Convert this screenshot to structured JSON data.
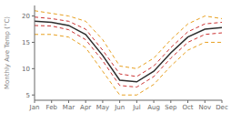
{
  "chart_data": {
    "type": "line",
    "ylabel": "Monthly Ave Temp (°C)",
    "categories": [
      "Jan",
      "Feb",
      "Mar",
      "Apr",
      "May",
      "Jun",
      "Jul",
      "Aug",
      "Sep",
      "Oct",
      "Nov",
      "Dec"
    ],
    "series": [
      {
        "color": "#e8a020",
        "line_style": "dashed",
        "values": [
          21.0,
          20.5,
          20.0,
          19.0,
          15.5,
          10.5,
          10.0,
          12.0,
          15.5,
          18.5,
          20.0,
          19.5
        ]
      },
      {
        "color": "#e8a020",
        "line_style": "dashed",
        "values": [
          16.5,
          16.5,
          16.0,
          14.0,
          9.5,
          5.0,
          5.0,
          7.0,
          10.5,
          13.5,
          15.0,
          15.0
        ]
      },
      {
        "color": "#cc3333",
        "line_style": "dashed",
        "values": [
          19.8,
          19.5,
          19.0,
          17.5,
          13.5,
          9.0,
          8.5,
          10.5,
          14.0,
          17.0,
          18.5,
          18.8
        ]
      },
      {
        "color": "#cc3333",
        "line_style": "dashed",
        "values": [
          18.2,
          18.1,
          17.4,
          15.5,
          11.5,
          6.8,
          6.5,
          8.5,
          12.0,
          15.0,
          16.5,
          16.8
        ]
      },
      {
        "color": "#2d2d2d",
        "line_style": "solid",
        "values": [
          19.0,
          18.8,
          18.2,
          16.5,
          12.5,
          7.8,
          7.5,
          9.5,
          13.0,
          16.0,
          17.5,
          17.8
        ]
      }
    ],
    "ylim": [
      4,
      22
    ],
    "yticks": [
      5,
      10,
      15,
      20
    ],
    "grid": false
  }
}
